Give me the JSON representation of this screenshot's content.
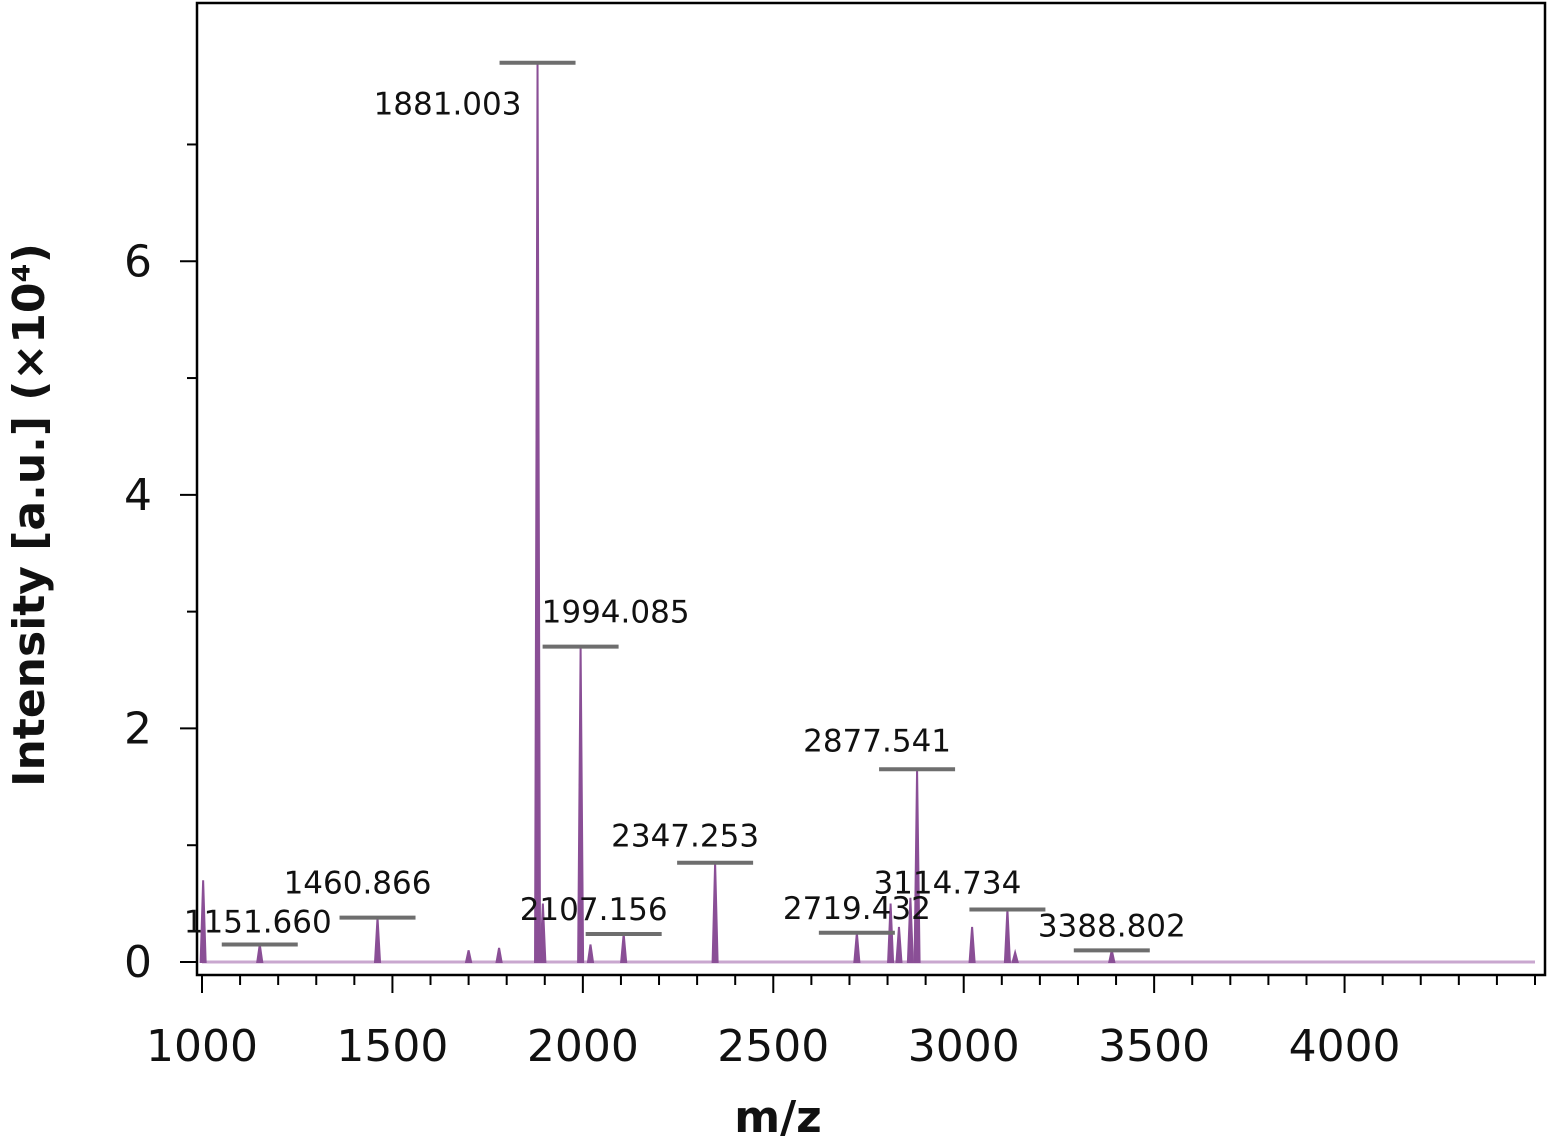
{
  "chart_data": {
    "type": "line",
    "title": "",
    "xlabel": "m/z",
    "ylabel": "Intensity [a.u.]",
    "ylabel_multiplier": "(×10⁴)",
    "xlim": [
      1000,
      4500
    ],
    "ylim": [
      0,
      8.1
    ],
    "x_ticks": [
      1000,
      1500,
      2000,
      2500,
      3000,
      3500,
      4000
    ],
    "y_ticks": [
      0,
      2,
      4,
      6
    ],
    "grid": false,
    "line_color": "#8a4f96",
    "label_marker_color": "#6e6e6e",
    "labeled_peaks": [
      {
        "mz": 1151.66,
        "label": "1151.660",
        "intensity": 0.15
      },
      {
        "mz": 1460.866,
        "label": "1460.866",
        "intensity": 0.38
      },
      {
        "mz": 1881.003,
        "label": "1881.003",
        "intensity": 7.7
      },
      {
        "mz": 1994.085,
        "label": "1994.085",
        "intensity": 2.7
      },
      {
        "mz": 2107.156,
        "label": "2107.156",
        "intensity": 0.24
      },
      {
        "mz": 2347.253,
        "label": "2347.253",
        "intensity": 0.85
      },
      {
        "mz": 2719.432,
        "label": "2719.432",
        "intensity": 0.25
      },
      {
        "mz": 2877.541,
        "label": "2877.541",
        "intensity": 1.65
      },
      {
        "mz": 3114.734,
        "label": "3114.734",
        "intensity": 0.45
      },
      {
        "mz": 3388.802,
        "label": "3388.802",
        "intensity": 0.1
      }
    ],
    "minor_peaks": [
      {
        "mz": 1003,
        "intensity": 0.7
      },
      {
        "mz": 1700,
        "intensity": 0.1
      },
      {
        "mz": 1780,
        "intensity": 0.12
      },
      {
        "mz": 1895,
        "intensity": 0.5
      },
      {
        "mz": 2020,
        "intensity": 0.15
      },
      {
        "mz": 2808,
        "intensity": 0.5
      },
      {
        "mz": 2830,
        "intensity": 0.3
      },
      {
        "mz": 2860,
        "intensity": 0.55
      },
      {
        "mz": 3022,
        "intensity": 0.3
      },
      {
        "mz": 3135,
        "intensity": 0.08
      }
    ]
  }
}
